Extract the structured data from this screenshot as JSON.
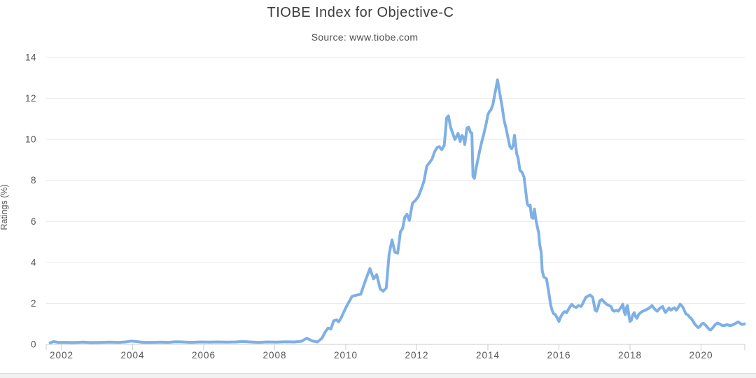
{
  "chart_data": {
    "type": "line",
    "title": "TIOBE Index for Objective-C",
    "subtitle": "Source: www.tiobe.com",
    "xlabel": "",
    "ylabel": "Ratings (%)",
    "series_name": "Objective-C",
    "legend": false,
    "grid": true,
    "x_ticks": [
      2002,
      2004,
      2006,
      2008,
      2010,
      2012,
      2014,
      2016,
      2018,
      2020
    ],
    "y_ticks": [
      0,
      2,
      4,
      6,
      8,
      10,
      12,
      14
    ],
    "xlim": [
      2001.567,
      2021.232
    ],
    "ylim": [
      0,
      14
    ],
    "colors": {
      "line": "#7eb0e6",
      "grid": "#e9e9e9",
      "axis": "#cccccc",
      "label": "#565656"
    },
    "points": [
      [
        2001.68,
        0.08
      ],
      [
        2001.78,
        0.14
      ],
      [
        2001.9,
        0.1
      ],
      [
        2002.1,
        0.1
      ],
      [
        2002.35,
        0.09
      ],
      [
        2002.6,
        0.11
      ],
      [
        2002.85,
        0.09
      ],
      [
        2003.1,
        0.1
      ],
      [
        2003.35,
        0.11
      ],
      [
        2003.6,
        0.1
      ],
      [
        2003.8,
        0.12
      ],
      [
        2003.95,
        0.16
      ],
      [
        2004.1,
        0.14
      ],
      [
        2004.3,
        0.1
      ],
      [
        2004.55,
        0.1
      ],
      [
        2004.8,
        0.11
      ],
      [
        2005.0,
        0.1
      ],
      [
        2005.2,
        0.13
      ],
      [
        2005.4,
        0.12
      ],
      [
        2005.65,
        0.1
      ],
      [
        2005.9,
        0.12
      ],
      [
        2006.15,
        0.11
      ],
      [
        2006.4,
        0.12
      ],
      [
        2006.65,
        0.11
      ],
      [
        2006.9,
        0.12
      ],
      [
        2007.1,
        0.14
      ],
      [
        2007.3,
        0.12
      ],
      [
        2007.55,
        0.1
      ],
      [
        2007.8,
        0.12
      ],
      [
        2008.05,
        0.11
      ],
      [
        2008.3,
        0.13
      ],
      [
        2008.55,
        0.12
      ],
      [
        2008.75,
        0.15
      ],
      [
        2008.9,
        0.3
      ],
      [
        2009.05,
        0.17
      ],
      [
        2009.2,
        0.12
      ],
      [
        2009.33,
        0.3
      ],
      [
        2009.42,
        0.6
      ],
      [
        2009.5,
        0.8
      ],
      [
        2009.58,
        0.75
      ],
      [
        2009.66,
        1.15
      ],
      [
        2009.74,
        1.2
      ],
      [
        2009.8,
        1.1
      ],
      [
        2009.87,
        1.3
      ],
      [
        2009.95,
        1.6
      ],
      [
        2010.05,
        1.95
      ],
      [
        2010.18,
        2.35
      ],
      [
        2010.3,
        2.4
      ],
      [
        2010.42,
        2.45
      ],
      [
        2010.55,
        3.1
      ],
      [
        2010.68,
        3.7
      ],
      [
        2010.78,
        3.2
      ],
      [
        2010.87,
        3.4
      ],
      [
        2010.97,
        2.7
      ],
      [
        2011.05,
        2.6
      ],
      [
        2011.14,
        2.75
      ],
      [
        2011.22,
        4.4
      ],
      [
        2011.3,
        5.1
      ],
      [
        2011.38,
        4.5
      ],
      [
        2011.46,
        4.45
      ],
      [
        2011.54,
        5.5
      ],
      [
        2011.6,
        5.65
      ],
      [
        2011.66,
        6.2
      ],
      [
        2011.72,
        6.35
      ],
      [
        2011.79,
        6.05
      ],
      [
        2011.88,
        6.9
      ],
      [
        2011.95,
        7.0
      ],
      [
        2012.04,
        7.2
      ],
      [
        2012.13,
        7.6
      ],
      [
        2012.2,
        7.95
      ],
      [
        2012.28,
        8.7
      ],
      [
        2012.35,
        8.85
      ],
      [
        2012.43,
        9.05
      ],
      [
        2012.5,
        9.4
      ],
      [
        2012.57,
        9.6
      ],
      [
        2012.63,
        9.65
      ],
      [
        2012.7,
        9.5
      ],
      [
        2012.77,
        9.7
      ],
      [
        2012.84,
        11.05
      ],
      [
        2012.89,
        11.15
      ],
      [
        2012.95,
        10.6
      ],
      [
        2013.02,
        10.25
      ],
      [
        2013.07,
        10.0
      ],
      [
        2013.12,
        10.15
      ],
      [
        2013.16,
        10.3
      ],
      [
        2013.22,
        9.9
      ],
      [
        2013.27,
        10.2
      ],
      [
        2013.31,
        10.1
      ],
      [
        2013.35,
        9.75
      ],
      [
        2013.41,
        10.55
      ],
      [
        2013.46,
        10.6
      ],
      [
        2013.51,
        10.35
      ],
      [
        2013.55,
        10.3
      ],
      [
        2013.58,
        8.2
      ],
      [
        2013.62,
        8.1
      ],
      [
        2013.67,
        8.6
      ],
      [
        2013.71,
        8.95
      ],
      [
        2013.77,
        9.45
      ],
      [
        2013.83,
        9.9
      ],
      [
        2013.89,
        10.3
      ],
      [
        2013.95,
        10.75
      ],
      [
        2014.0,
        11.2
      ],
      [
        2014.04,
        11.35
      ],
      [
        2014.09,
        11.45
      ],
      [
        2014.14,
        11.7
      ],
      [
        2014.19,
        12.15
      ],
      [
        2014.27,
        12.9
      ],
      [
        2014.34,
        12.2
      ],
      [
        2014.4,
        11.6
      ],
      [
        2014.46,
        10.9
      ],
      [
        2014.51,
        10.55
      ],
      [
        2014.57,
        10.05
      ],
      [
        2014.62,
        9.65
      ],
      [
        2014.67,
        9.55
      ],
      [
        2014.71,
        9.7
      ],
      [
        2014.75,
        10.2
      ],
      [
        2014.81,
        9.3
      ],
      [
        2014.85,
        9.1
      ],
      [
        2014.9,
        8.5
      ],
      [
        2014.96,
        8.4
      ],
      [
        2015.02,
        8.15
      ],
      [
        2015.07,
        7.4
      ],
      [
        2015.11,
        6.85
      ],
      [
        2015.15,
        6.75
      ],
      [
        2015.19,
        6.8
      ],
      [
        2015.23,
        6.2
      ],
      [
        2015.27,
        6.15
      ],
      [
        2015.31,
        6.6
      ],
      [
        2015.35,
        6.1
      ],
      [
        2015.39,
        5.75
      ],
      [
        2015.43,
        5.45
      ],
      [
        2015.46,
        4.85
      ],
      [
        2015.5,
        4.5
      ],
      [
        2015.53,
        3.6
      ],
      [
        2015.57,
        3.3
      ],
      [
        2015.61,
        3.25
      ],
      [
        2015.65,
        3.2
      ],
      [
        2015.69,
        2.8
      ],
      [
        2015.73,
        2.35
      ],
      [
        2015.77,
        1.9
      ],
      [
        2015.81,
        1.65
      ],
      [
        2015.85,
        1.5
      ],
      [
        2015.9,
        1.45
      ],
      [
        2015.95,
        1.3
      ],
      [
        2016.0,
        1.12
      ],
      [
        2016.05,
        1.35
      ],
      [
        2016.1,
        1.5
      ],
      [
        2016.16,
        1.6
      ],
      [
        2016.22,
        1.55
      ],
      [
        2016.28,
        1.75
      ],
      [
        2016.36,
        1.95
      ],
      [
        2016.42,
        1.85
      ],
      [
        2016.49,
        1.8
      ],
      [
        2016.55,
        1.9
      ],
      [
        2016.63,
        1.85
      ],
      [
        2016.7,
        2.1
      ],
      [
        2016.76,
        2.3
      ],
      [
        2016.82,
        2.36
      ],
      [
        2016.88,
        2.41
      ],
      [
        2016.95,
        2.3
      ],
      [
        2017.02,
        1.67
      ],
      [
        2017.06,
        1.62
      ],
      [
        2017.1,
        1.8
      ],
      [
        2017.15,
        2.13
      ],
      [
        2017.21,
        2.19
      ],
      [
        2017.27,
        2.07
      ],
      [
        2017.34,
        1.96
      ],
      [
        2017.41,
        1.9
      ],
      [
        2017.47,
        1.84
      ],
      [
        2017.51,
        1.67
      ],
      [
        2017.56,
        1.62
      ],
      [
        2017.61,
        1.67
      ],
      [
        2017.67,
        1.62
      ],
      [
        2017.74,
        1.79
      ],
      [
        2017.8,
        1.96
      ],
      [
        2017.84,
        1.56
      ],
      [
        2017.87,
        1.45
      ],
      [
        2017.9,
        1.79
      ],
      [
        2017.93,
        1.9
      ],
      [
        2017.97,
        1.4
      ],
      [
        2018.0,
        1.12
      ],
      [
        2018.04,
        1.18
      ],
      [
        2018.08,
        1.45
      ],
      [
        2018.12,
        1.55
      ],
      [
        2018.16,
        1.35
      ],
      [
        2018.2,
        1.27
      ],
      [
        2018.24,
        1.45
      ],
      [
        2018.3,
        1.55
      ],
      [
        2018.36,
        1.62
      ],
      [
        2018.43,
        1.67
      ],
      [
        2018.5,
        1.73
      ],
      [
        2018.56,
        1.8
      ],
      [
        2018.62,
        1.9
      ],
      [
        2018.67,
        1.78
      ],
      [
        2018.72,
        1.68
      ],
      [
        2018.77,
        1.62
      ],
      [
        2018.82,
        1.73
      ],
      [
        2018.87,
        1.8
      ],
      [
        2018.92,
        1.85
      ],
      [
        2018.96,
        1.67
      ],
      [
        2019.0,
        1.56
      ],
      [
        2019.05,
        1.67
      ],
      [
        2019.1,
        1.78
      ],
      [
        2019.15,
        1.67
      ],
      [
        2019.2,
        1.73
      ],
      [
        2019.25,
        1.79
      ],
      [
        2019.3,
        1.67
      ],
      [
        2019.35,
        1.78
      ],
      [
        2019.41,
        1.96
      ],
      [
        2019.46,
        1.88
      ],
      [
        2019.5,
        1.78
      ],
      [
        2019.54,
        1.62
      ],
      [
        2019.58,
        1.48
      ],
      [
        2019.63,
        1.44
      ],
      [
        2019.68,
        1.33
      ],
      [
        2019.72,
        1.27
      ],
      [
        2019.77,
        1.15
      ],
      [
        2019.82,
        1.0
      ],
      [
        2019.87,
        0.9
      ],
      [
        2019.92,
        0.82
      ],
      [
        2019.97,
        0.88
      ],
      [
        2020.02,
        1.0
      ],
      [
        2020.07,
        1.03
      ],
      [
        2020.12,
        0.95
      ],
      [
        2020.17,
        0.85
      ],
      [
        2020.22,
        0.75
      ],
      [
        2020.27,
        0.7
      ],
      [
        2020.33,
        0.81
      ],
      [
        2020.4,
        0.97
      ],
      [
        2020.46,
        1.04
      ],
      [
        2020.53,
        0.99
      ],
      [
        2020.6,
        0.92
      ],
      [
        2020.67,
        0.92
      ],
      [
        2020.73,
        0.97
      ],
      [
        2020.8,
        0.92
      ],
      [
        2020.86,
        0.93
      ],
      [
        2020.92,
        0.98
      ],
      [
        2020.98,
        1.03
      ],
      [
        2021.04,
        1.1
      ],
      [
        2021.1,
        1.03
      ],
      [
        2021.16,
        0.97
      ],
      [
        2021.22,
        1.0
      ]
    ]
  }
}
